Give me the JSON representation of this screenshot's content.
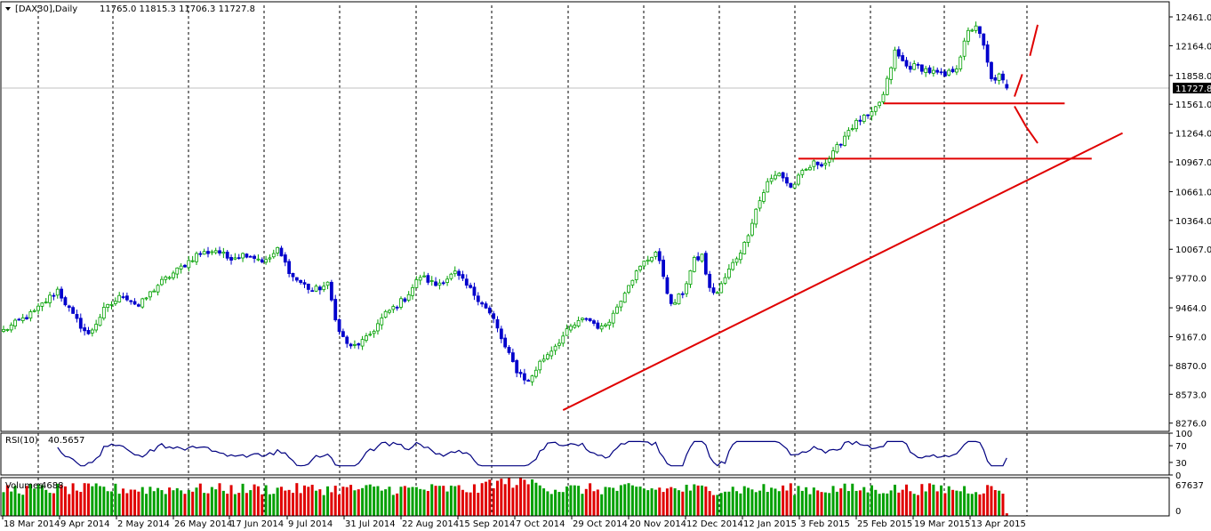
{
  "window": {
    "title_symbol": "[DAX30],Daily",
    "ohlc": "11765.0 11815.3 11706.3 11727.8"
  },
  "colors": {
    "bull": "#00a000",
    "bear": "#0000cc",
    "rsi": "#000080",
    "vol_up": "#00a000",
    "vol_down": "#e00000",
    "lines": "#e00000",
    "grid": "#000000"
  },
  "chart_data": [
    {
      "type": "candlestick",
      "title": "[DAX30],Daily",
      "ohlc_readout": "11765.0 11815.3 11706.3 11727.8",
      "current_price": "11727.8",
      "y_ticks": [
        "12461.0",
        "12164.0",
        "11858.0",
        "11561.0",
        "11264.0",
        "10967.0",
        "10661.0",
        "10364.0",
        "10067.0",
        "9770.0",
        "9464.0",
        "9167.0",
        "8870.0",
        "8573.0",
        "8276.0"
      ],
      "x_ticks": [
        "18 Mar 2014",
        "9 Apr 2014",
        "2 May 2014",
        "26 May 2014",
        "17 Jun 2014",
        "9 Jul 2014",
        "31 Jul 2014",
        "22 Aug 2014",
        "15 Sep 2014",
        "7 Oct 2014",
        "29 Oct 2014",
        "20 Nov 2014",
        "12 Dec 2014",
        "12 Jan 2015",
        "3 Feb 2015",
        "25 Feb 2015",
        "19 Mar 2015",
        "13 Apr 2015"
      ],
      "ylim": [
        8200,
        12580
      ],
      "grid": "vertical dotted",
      "keyframes_close": [
        [
          0,
          9230
        ],
        [
          8,
          9420
        ],
        [
          14,
          9650
        ],
        [
          18,
          9380
        ],
        [
          22,
          9180
        ],
        [
          26,
          9440
        ],
        [
          31,
          9600
        ],
        [
          35,
          9480
        ],
        [
          40,
          9700
        ],
        [
          46,
          9880
        ],
        [
          50,
          10010
        ],
        [
          55,
          10060
        ],
        [
          58,
          9980
        ],
        [
          63,
          10020
        ],
        [
          68,
          9940
        ],
        [
          71,
          10060
        ],
        [
          75,
          9780
        ],
        [
          80,
          9640
        ],
        [
          84,
          9700
        ],
        [
          87,
          9210
        ],
        [
          90,
          9050
        ],
        [
          94,
          9140
        ],
        [
          99,
          9400
        ],
        [
          104,
          9560
        ],
        [
          108,
          9790
        ],
        [
          112,
          9700
        ],
        [
          117,
          9820
        ],
        [
          120,
          9690
        ],
        [
          124,
          9520
        ],
        [
          127,
          9340
        ],
        [
          130,
          9050
        ],
        [
          133,
          8820
        ],
        [
          136,
          8700
        ],
        [
          139,
          8900
        ],
        [
          143,
          9080
        ],
        [
          147,
          9260
        ],
        [
          151,
          9360
        ],
        [
          155,
          9250
        ],
        [
          158,
          9400
        ],
        [
          162,
          9720
        ],
        [
          166,
          9930
        ],
        [
          169,
          10040
        ],
        [
          171,
          9800
        ],
        [
          173,
          9480
        ],
        [
          176,
          9620
        ],
        [
          179,
          9950
        ],
        [
          181,
          10000
        ],
        [
          183,
          9650
        ],
        [
          185,
          9620
        ],
        [
          188,
          9850
        ],
        [
          192,
          10120
        ],
        [
          195,
          10480
        ],
        [
          198,
          10750
        ],
        [
          201,
          10860
        ],
        [
          204,
          10700
        ],
        [
          207,
          10850
        ],
        [
          210,
          10950
        ],
        [
          213,
          10960
        ],
        [
          215,
          11050
        ],
        [
          219,
          11300
        ],
        [
          222,
          11400
        ],
        [
          225,
          11450
        ],
        [
          228,
          11650
        ],
        [
          231,
          12100
        ],
        [
          234,
          11950
        ],
        [
          237,
          11950
        ],
        [
          240,
          11900
        ],
        [
          244,
          11850
        ],
        [
          247,
          11950
        ],
        [
          250,
          12300
        ],
        [
          252,
          12380
        ],
        [
          254,
          12150
        ],
        [
          256,
          11810
        ],
        [
          258,
          11850
        ],
        [
          260,
          11727.8
        ]
      ],
      "lines": [
        {
          "kind": "trendline",
          "from": [
            145,
            8410
          ],
          "to": [
            290,
            11264
          ]
        },
        {
          "kind": "horizontal",
          "price": 11570,
          "x_range": [
            228,
            275
          ]
        },
        {
          "kind": "horizontal",
          "price": 11000,
          "x_range": [
            206,
            282
          ]
        },
        {
          "kind": "projection-up",
          "points": [
            [
              262,
              11640
            ],
            [
              264,
              11870
            ],
            [
              266,
              12060
            ],
            [
              268,
              12380
            ]
          ]
        },
        {
          "kind": "projection-down",
          "points": [
            [
              262,
              11540
            ],
            [
              265,
              11330
            ],
            [
              268,
              11160
            ]
          ]
        }
      ]
    },
    {
      "type": "line",
      "title": "RSI(10)",
      "value": "40.5657",
      "y_ticks": [
        "100",
        "70",
        "30",
        "0"
      ]
    },
    {
      "type": "bar",
      "title": "Volumes",
      "value": "4688",
      "y_ticks": [
        "67637",
        "0"
      ]
    }
  ]
}
